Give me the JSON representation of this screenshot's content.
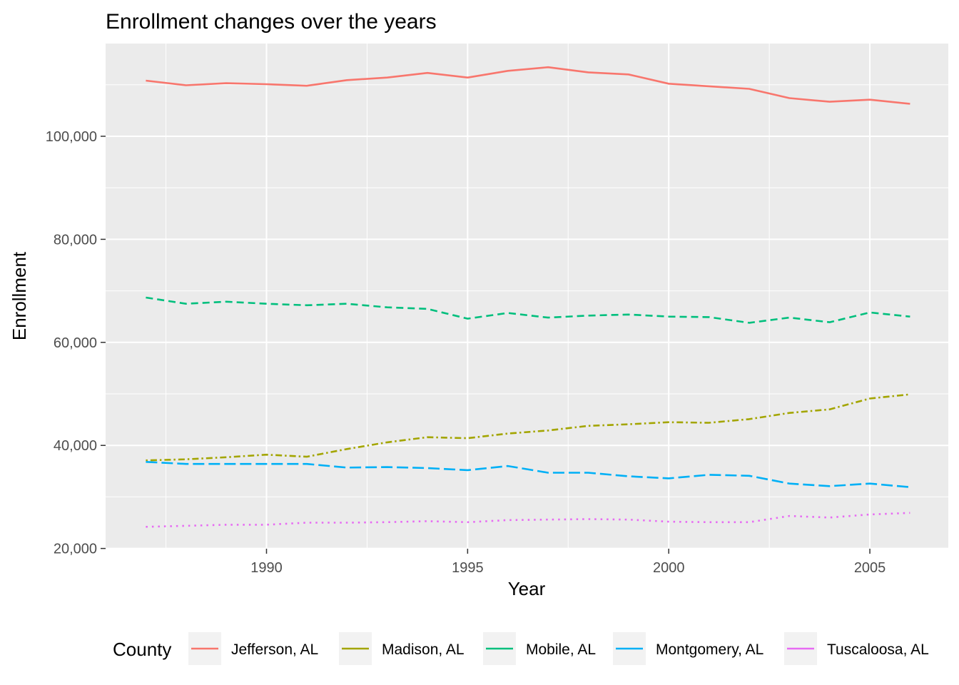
{
  "chart_data": {
    "type": "line",
    "title": "Enrollment changes over the years",
    "xlabel": "Year",
    "ylabel": "Enrollment",
    "xlim": [
      1986.0,
      2006.95
    ],
    "ylim": [
      19950,
      118000
    ],
    "x_ticks": [
      1990,
      1995,
      2000,
      2005
    ],
    "y_ticks": [
      20000,
      40000,
      60000,
      80000,
      100000
    ],
    "y_tick_labels": [
      "20,000",
      "40,000",
      "60,000",
      "80,000",
      "100,000"
    ],
    "grid": true,
    "legend": {
      "title": "County",
      "position": "bottom"
    },
    "x": [
      1987,
      1988,
      1989,
      1990,
      1991,
      1992,
      1993,
      1994,
      1995,
      1996,
      1997,
      1998,
      1999,
      2000,
      2001,
      2002,
      2003,
      2004,
      2005,
      2006
    ],
    "series": [
      {
        "name": "Jefferson, AL",
        "color": "#F8766D",
        "dash": "solid",
        "values": [
          110800,
          109900,
          110300,
          110100,
          109800,
          110900,
          111400,
          112300,
          111400,
          112700,
          113400,
          112400,
          112000,
          110200,
          109700,
          109200,
          107400,
          106700,
          107100,
          106300
        ]
      },
      {
        "name": "Madison, AL",
        "color": "#A3A500",
        "dash": "dotdash",
        "values": [
          37100,
          37300,
          37700,
          38200,
          37800,
          39300,
          40600,
          41600,
          41400,
          42300,
          42900,
          43800,
          44100,
          44500,
          44400,
          45100,
          46300,
          47000,
          49100,
          49900
        ]
      },
      {
        "name": "Mobile, AL",
        "color": "#00BF7D",
        "dash": "dashed",
        "values": [
          68700,
          67500,
          67900,
          67500,
          67200,
          67500,
          66800,
          66500,
          64600,
          65700,
          64800,
          65200,
          65400,
          65000,
          64900,
          63800,
          64800,
          63900,
          65800,
          65000
        ]
      },
      {
        "name": "Montgomery, AL",
        "color": "#00B0F6",
        "dash": "longdash",
        "values": [
          36800,
          36400,
          36400,
          36400,
          36400,
          35700,
          35800,
          35600,
          35200,
          36000,
          34700,
          34700,
          34000,
          33600,
          34300,
          34100,
          32600,
          32100,
          32600,
          31900
        ]
      },
      {
        "name": "Tuscaloosa, AL",
        "color": "#E76BF3",
        "dash": "dotted",
        "values": [
          24200,
          24400,
          24600,
          24600,
          25000,
          25000,
          25100,
          25300,
          25100,
          25500,
          25600,
          25700,
          25600,
          25200,
          25100,
          25100,
          26300,
          26000,
          26600,
          26900
        ]
      }
    ]
  }
}
